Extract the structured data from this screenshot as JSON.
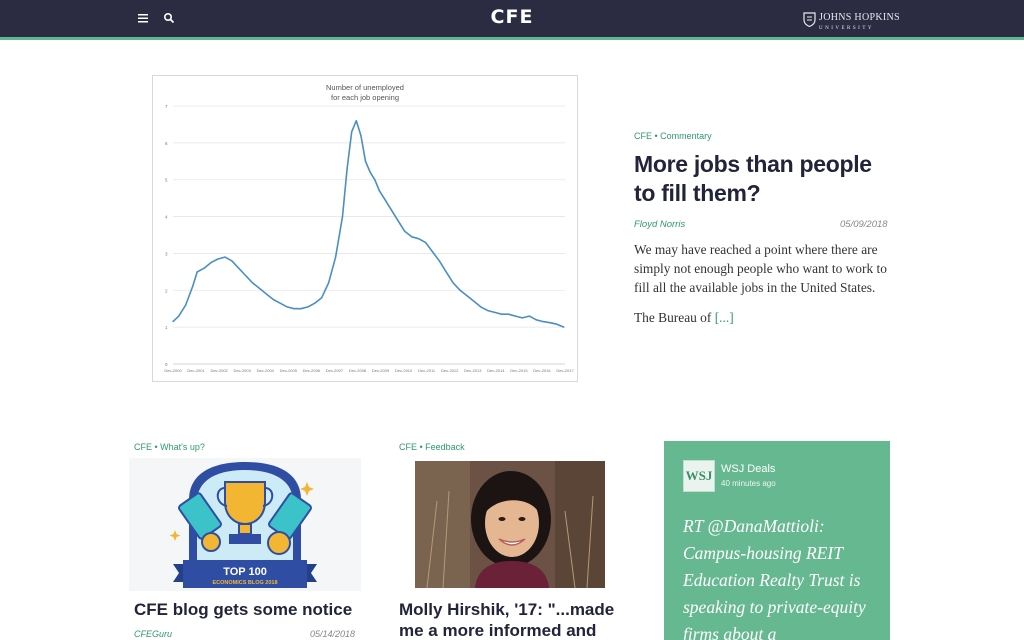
{
  "header": {
    "menu_icon": "hamburger-menu-icon",
    "search_icon": "search-icon",
    "logo": "CFE",
    "university_line1": "JOHNS HOPKINS",
    "university_line2": "UNIVERSITY",
    "colors": {
      "bar": "#2b2c42",
      "accent": "#5fb78e"
    }
  },
  "featured": {
    "category": "CFE • Commentary",
    "title": "More jobs than people to fill them?",
    "author": "Floyd Norris",
    "date": "05/09/2018",
    "excerpt": "We may have reached a point where there are simply not enough people who want to work to fill all the available jobs in the United States.",
    "more_prefix": "The Bureau of ",
    "more_link": "[...]"
  },
  "chart_data": {
    "type": "line",
    "title": "Number of unemployed\nfor each job opening",
    "ylim": [
      0,
      7
    ],
    "yticks": [
      "0",
      "1",
      "2",
      "3",
      "4",
      "5",
      "6",
      "7"
    ],
    "xticks": [
      "Dec-2000",
      "Dec-2001",
      "Dec-2002",
      "Dec-2003",
      "Dec-2004",
      "Dec-2005",
      "Dec-2006",
      "Dec-2007",
      "Dec-2008",
      "Dec-2009",
      "Dec-2010",
      "Dec-2011",
      "Dec-2012",
      "Dec-2013",
      "Dec-2014",
      "Dec-2015",
      "Dec-2016",
      "Dec-2017"
    ],
    "grid": true,
    "series_color": "#4a8fc4",
    "x": [
      2000.95,
      2001.2,
      2001.5,
      2001.8,
      2002.0,
      2002.3,
      2002.6,
      2002.9,
      2003.2,
      2003.5,
      2003.8,
      2004.1,
      2004.4,
      2004.7,
      2005.0,
      2005.3,
      2005.6,
      2005.9,
      2006.2,
      2006.5,
      2006.8,
      2007.1,
      2007.4,
      2007.7,
      2008.0,
      2008.3,
      2008.5,
      2008.7,
      2008.9,
      2009.1,
      2009.3,
      2009.5,
      2009.7,
      2009.9,
      2010.1,
      2010.4,
      2010.7,
      2011.0,
      2011.3,
      2011.6,
      2011.9,
      2012.2,
      2012.5,
      2012.8,
      2013.1,
      2013.4,
      2013.7,
      2014.0,
      2014.3,
      2014.6,
      2014.9,
      2015.2,
      2015.5,
      2015.8,
      2016.1,
      2016.4,
      2016.7,
      2017.0,
      2017.3,
      2017.6,
      2017.9
    ],
    "values": [
      1.15,
      1.3,
      1.6,
      2.1,
      2.5,
      2.6,
      2.75,
      2.85,
      2.9,
      2.8,
      2.6,
      2.4,
      2.2,
      2.05,
      1.9,
      1.75,
      1.65,
      1.55,
      1.5,
      1.5,
      1.55,
      1.65,
      1.8,
      2.2,
      2.9,
      4.0,
      5.3,
      6.3,
      6.6,
      6.2,
      5.5,
      5.2,
      5.0,
      4.7,
      4.5,
      4.2,
      3.9,
      3.6,
      3.45,
      3.4,
      3.3,
      3.05,
      2.8,
      2.5,
      2.2,
      2.0,
      1.85,
      1.7,
      1.55,
      1.45,
      1.4,
      1.35,
      1.35,
      1.3,
      1.25,
      1.3,
      1.2,
      1.15,
      1.12,
      1.08,
      1.0
    ]
  },
  "cards": [
    {
      "category": "CFE • What's up?",
      "badge_top": "TOP 100",
      "badge_bottom": "ECONOMICS BLOG 2018",
      "title": "CFE blog gets some notice",
      "author": "CFEGuru",
      "date": "05/14/2018"
    },
    {
      "category": "CFE • Feedback",
      "title": "Molly Hirshik, '17: \"...made me a more informed and"
    }
  ],
  "tweet": {
    "avatar": "WSJ",
    "name": "WSJ Deals",
    "time": "40 minutes ago",
    "text": "RT @DanaMattioli: Campus-housing REIT Education Realty Trust is speaking to private-equity firms about a",
    "bg": "#66b890"
  }
}
